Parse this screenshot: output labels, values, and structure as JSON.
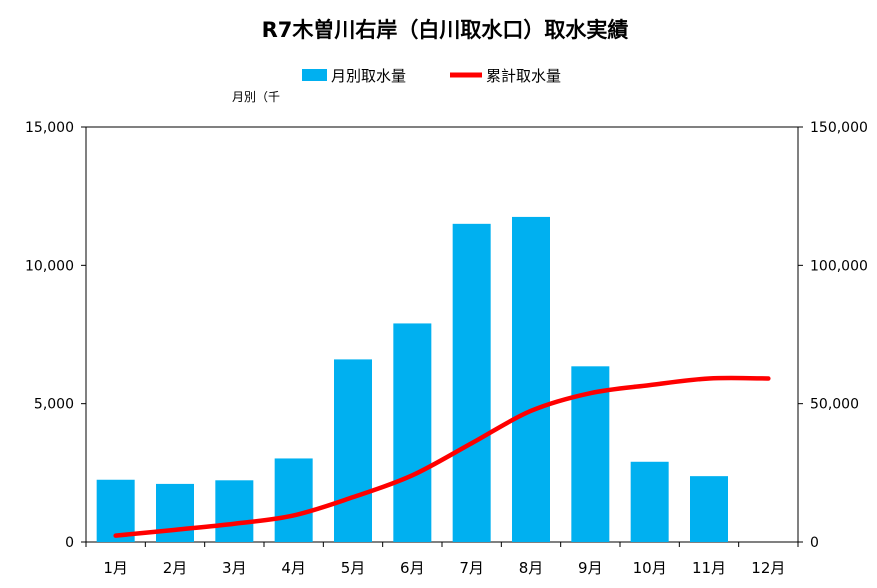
{
  "chart_data": {
    "type": "bar+line",
    "title": "R7木曽川右岸（白川取水口）取水実績",
    "left_axis_label": "月別（千",
    "categories": [
      "1月",
      "2月",
      "3月",
      "4月",
      "5月",
      "6月",
      "7月",
      "8月",
      "9月",
      "10月",
      "11月",
      "12月"
    ],
    "series": [
      {
        "name": "月別取水量",
        "type": "bar",
        "axis": "left",
        "color": "#00B0F0",
        "values": [
          2250,
          2100,
          2230,
          3020,
          6600,
          7900,
          11500,
          11750,
          6350,
          2900,
          2380,
          null
        ]
      },
      {
        "name": "累計取水量",
        "type": "line",
        "axis": "right",
        "color": "#FF0000",
        "values": [
          2300,
          4400,
          6600,
          9600,
          16200,
          24100,
          35700,
          47400,
          53800,
          56700,
          59100,
          59100
        ]
      }
    ],
    "yleft": {
      "min": 0,
      "max": 15000,
      "ticks": [
        "0",
        "5,000",
        "10,000",
        "15,000"
      ],
      "tick_values": [
        0,
        5000,
        10000,
        15000
      ]
    },
    "yright": {
      "min": 0,
      "max": 150000,
      "ticks": [
        "0",
        "50,000",
        "100,000",
        "150,000"
      ],
      "tick_values": [
        0,
        50000,
        100000,
        150000
      ]
    },
    "legend_position": "top-center",
    "grid": false
  }
}
